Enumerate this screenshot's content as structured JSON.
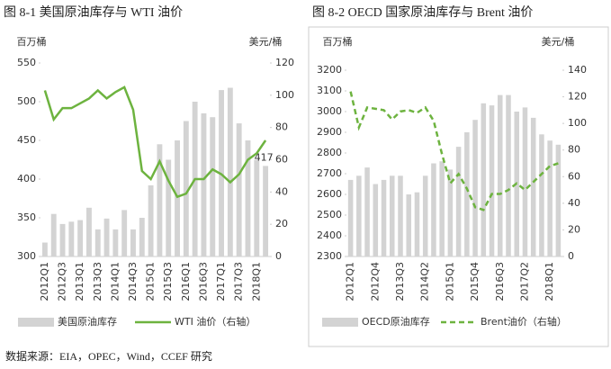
{
  "source": "数据来源：EIA，OPEC，Wind，CCEF 研究",
  "chart_data": [
    {
      "type": "combo",
      "title": "图 8-1 美国原油库存与 WTI 油价",
      "y_label": "百万桶",
      "y2_label": "美元/桶",
      "categories": [
        "2012Q1",
        null,
        "2012Q3",
        null,
        "2013Q1",
        null,
        "2013Q3",
        null,
        "2014Q1",
        null,
        "2014Q3",
        null,
        "2015Q1",
        null,
        "2015Q3",
        null,
        "2016Q1",
        null,
        "2016Q3",
        null,
        "2017Q1",
        null,
        "2017Q3",
        null,
        "2018Q1",
        null
      ],
      "ylim": [
        300,
        550
      ],
      "yticks": [
        300,
        350,
        400,
        450,
        500,
        550
      ],
      "y2lim": [
        0,
        120
      ],
      "y2ticks": [
        0,
        20,
        40,
        60,
        80,
        100,
        120
      ],
      "series": [
        {
          "name": "美国原油库存",
          "kind": "bar",
          "color": "#d3d3d3",
          "values": [
            318,
            355,
            342,
            345,
            347,
            363,
            335,
            349,
            335,
            360,
            335,
            350,
            392,
            445,
            425,
            450,
            475,
            500,
            485,
            480,
            515,
            518,
            472,
            450,
            425,
            417
          ],
          "value_labels": [
            null,
            null,
            null,
            null,
            null,
            null,
            null,
            null,
            null,
            null,
            null,
            null,
            null,
            null,
            null,
            null,
            null,
            null,
            null,
            null,
            null,
            null,
            null,
            null,
            null,
            "417"
          ]
        },
        {
          "name": "WTI 油价（右轴）",
          "kind": "line",
          "axis": "y2",
          "color": "#6db33f",
          "line_style": "solid",
          "values": [
            103,
            85,
            92,
            92,
            95,
            98,
            103,
            98,
            102,
            105,
            91,
            53,
            48,
            59,
            47,
            37,
            39,
            48,
            48,
            54,
            51,
            46,
            51,
            60,
            64,
            72
          ]
        }
      ]
    },
    {
      "type": "combo",
      "title": "图 8-2 OECD 国家原油库存与 Brent 油价",
      "y_label": "百万桶",
      "y2_label": "美元/桶",
      "categories": [
        "2012Q1",
        null,
        null,
        "2012Q4",
        null,
        null,
        "2013Q3",
        null,
        null,
        "2014Q2",
        null,
        null,
        "2015Q1",
        null,
        null,
        "2015Q4",
        null,
        null,
        "2016Q3",
        null,
        null,
        "2017Q2",
        null,
        null,
        "2018Q1",
        null
      ],
      "ylim": [
        2300,
        3200
      ],
      "yticks": [
        2300,
        2400,
        2500,
        2600,
        2700,
        2800,
        2900,
        3000,
        3100,
        3200
      ],
      "y2lim": [
        0,
        140
      ],
      "y2ticks": [
        0,
        20,
        40,
        60,
        80,
        100,
        120,
        140
      ],
      "series": [
        {
          "name": "OECD原油库存",
          "kind": "bar",
          "color": "#d3d3d3",
          "values": [
            2670,
            2690,
            2730,
            2650,
            2670,
            2690,
            2690,
            2600,
            2610,
            2690,
            2750,
            2760,
            2720,
            2830,
            2900,
            2960,
            3040,
            3030,
            3080,
            3080,
            3000,
            3020,
            2970,
            2890,
            2860,
            2840
          ]
        },
        {
          "name": "Brent油价（右轴）",
          "kind": "line",
          "axis": "y2",
          "color": "#6db33f",
          "line_style": "dashed",
          "values": [
            124,
            97,
            112,
            111,
            110,
            103,
            109,
            110,
            108,
            112,
            102,
            77,
            55,
            62,
            51,
            37,
            35,
            47,
            47,
            50,
            55,
            50,
            56,
            62,
            68,
            70
          ]
        }
      ]
    }
  ]
}
